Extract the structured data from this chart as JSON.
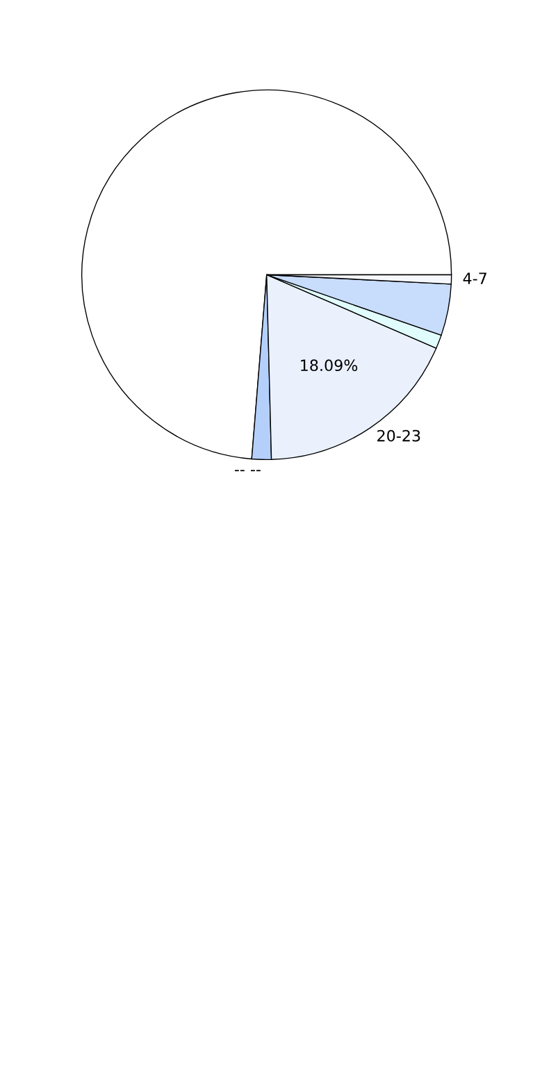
{
  "chart_data": {
    "type": "pie",
    "categories": [
      null,
      "-- --",
      "20-23",
      null,
      null,
      "4-7"
    ],
    "values": [
      73.71,
      1.7,
      18.09,
      1.2,
      4.5,
      0.8
    ],
    "colors": [
      "#ffffff",
      "#b4d0fa",
      "#eaf1fd",
      "#e0fcfc",
      "#c8dcfc",
      "#f6f8fe"
    ],
    "value_labels": [
      null,
      null,
      "18.09%",
      null,
      null,
      null
    ],
    "legend": false
  }
}
